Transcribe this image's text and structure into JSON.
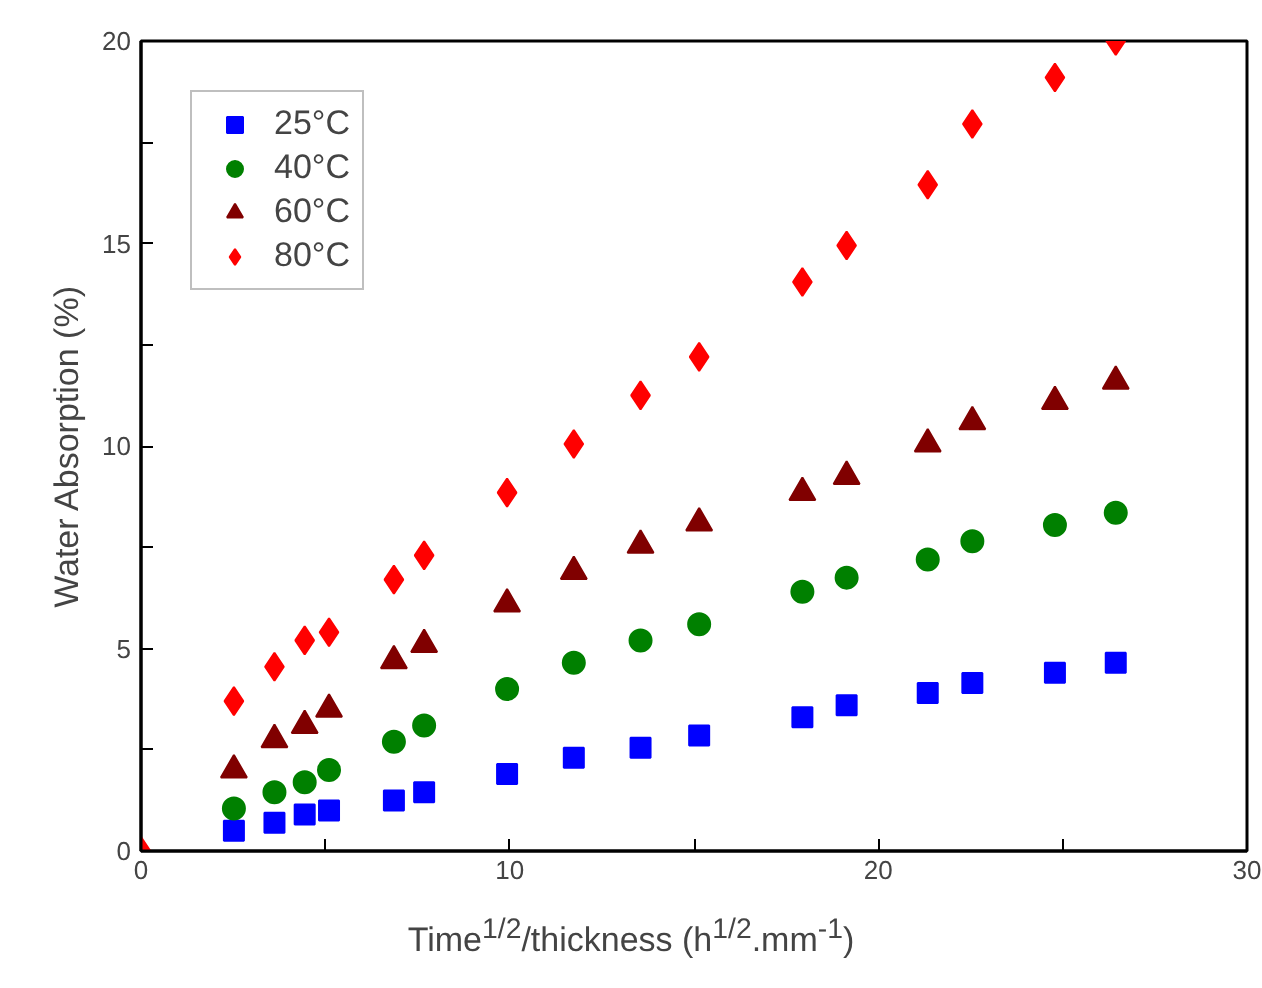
{
  "chart_data": {
    "type": "scatter",
    "xlabel": "Time$^{1/2}$/thickness (h$^{1/2}$.mm$^{-1}$)",
    "ylabel": "Water Absorption (%)",
    "x": [
      2.52,
      3.62,
      4.44,
      5.1,
      6.86,
      7.68,
      9.93,
      11.74,
      13.55,
      15.14,
      17.94,
      19.14,
      21.34,
      22.55,
      24.79,
      26.44
    ],
    "series": [
      {
        "name": "25°C",
        "color": "#0000ff",
        "marker": "square",
        "values": [
          0.5,
          0.7,
          0.9,
          1.0,
          1.25,
          1.45,
          1.9,
          2.3,
          2.55,
          2.85,
          3.3,
          3.6,
          3.9,
          4.15,
          4.4,
          4.65
        ]
      },
      {
        "name": "40°C",
        "color": "#008000",
        "marker": "circle",
        "values": [
          1.05,
          1.45,
          1.7,
          2.0,
          2.7,
          3.1,
          4.0,
          4.65,
          5.2,
          5.6,
          6.4,
          6.75,
          7.2,
          7.65,
          8.05,
          8.35
        ]
      },
      {
        "name": "60°C",
        "color": "#800000",
        "marker": "triangle",
        "values": [
          2.0,
          2.75,
          3.1,
          3.5,
          4.7,
          5.1,
          6.1,
          6.9,
          7.55,
          8.1,
          8.85,
          9.25,
          10.05,
          10.6,
          11.1,
          11.6
        ]
      },
      {
        "name": "80°C",
        "color": "#ff0000",
        "marker": "diamond",
        "x": [
          0,
          2.52,
          3.62,
          4.44,
          5.1,
          6.86,
          7.68,
          9.93,
          11.74,
          13.55,
          15.14,
          17.94,
          19.14,
          21.34,
          22.55,
          24.79,
          26.44
        ],
        "values": [
          0,
          3.7,
          4.55,
          5.2,
          5.4,
          6.7,
          7.3,
          8.85,
          10.05,
          11.25,
          12.2,
          14.05,
          14.95,
          16.45,
          17.95,
          19.1,
          20
        ]
      }
    ],
    "xlim": [
      0,
      30
    ],
    "ylim": [
      0,
      20
    ],
    "xticks": [
      0,
      {
        "value": 5,
        "label": null
      },
      10,
      {
        "value": 15,
        "label": null
      },
      20,
      {
        "value": 25,
        "label": null
      },
      30
    ],
    "yticks": [
      0,
      {
        "value": 2.5,
        "label": null
      },
      5,
      {
        "value": 7.5,
        "label": null
      },
      10,
      {
        "value": 12.5,
        "label": null
      },
      15,
      {
        "value": 17.5,
        "label": null
      },
      20
    ],
    "legend": "top left",
    "grid": false
  }
}
